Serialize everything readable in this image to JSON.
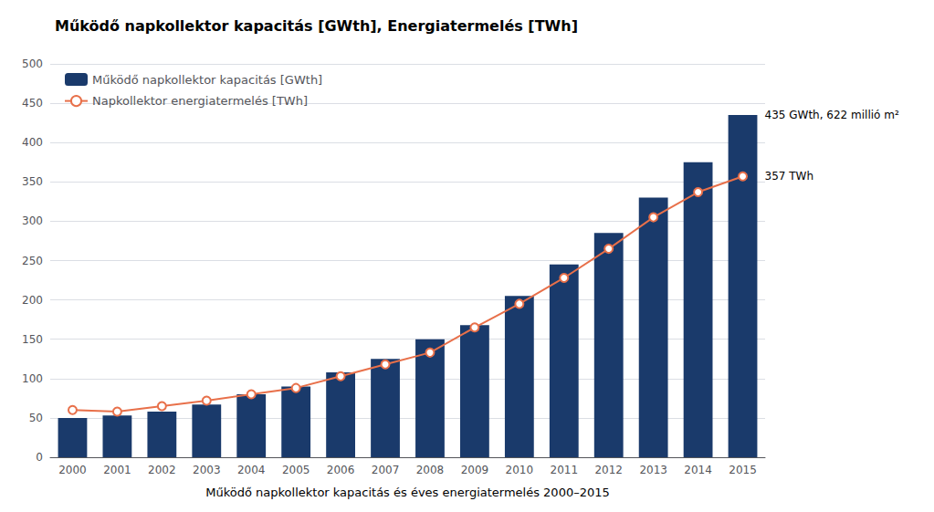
{
  "chart_data": {
    "type": "bar",
    "title": "Működő napkollektor kapacitás [GWth], Energiatermelés [TWh]",
    "x_label": "Működő napkollektor kapacitás és éves energiatermelés 2000–2015",
    "categories": [
      "2000",
      "2001",
      "2002",
      "2003",
      "2004",
      "2005",
      "2006",
      "2007",
      "2008",
      "2009",
      "2010",
      "2011",
      "2012",
      "2013",
      "2014",
      "2015"
    ],
    "series": [
      {
        "name": "Működő napkollektor kapacitás [GWth]",
        "type": "bar",
        "color": "#1a3a6b",
        "values": [
          50,
          53,
          58,
          67,
          80,
          90,
          108,
          125,
          150,
          168,
          205,
          245,
          285,
          330,
          375,
          435
        ]
      },
      {
        "name": "Napkollektor energiatermelés [TWh]",
        "type": "line",
        "color": "#e8704a",
        "marker": "circle",
        "values": [
          60,
          58,
          65,
          72,
          80,
          88,
          103,
          118,
          133,
          165,
          195,
          228,
          265,
          305,
          337,
          357
        ]
      }
    ],
    "annotations": [
      {
        "text": "435 GWth, 622 millió m²",
        "x": "2015",
        "y": 435
      },
      {
        "text": "357 TWh",
        "x": "2015",
        "y": 357
      }
    ],
    "ylim": [
      0,
      500
    ],
    "yticks": [
      0,
      50,
      100,
      150,
      200,
      250,
      300,
      350,
      400,
      450,
      500
    ],
    "grid": true,
    "legend": "upper left"
  }
}
